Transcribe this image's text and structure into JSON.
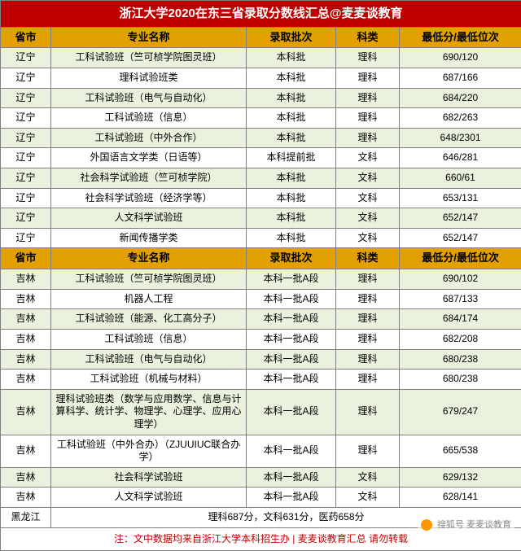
{
  "title": "浙江大学2020在东三省录取分数线汇总@麦麦谈教育",
  "columns": [
    "省市",
    "专业名称",
    "录取批次",
    "科类",
    "最低分/最低位次"
  ],
  "col_widths": [
    "62px",
    "240px",
    "110px",
    "78px",
    "150px"
  ],
  "header_bg": "#e2a100",
  "title_bg": "#c00000",
  "alt_bg_a": "#eaf1dd",
  "alt_bg_b": "#ffffff",
  "section1": [
    {
      "prov": "辽宁",
      "major": "工科试验班（竺可桢学院图灵班）",
      "batch": "本科批",
      "subj": "理科",
      "score": "690/120"
    },
    {
      "prov": "辽宁",
      "major": "理科试验班类",
      "batch": "本科批",
      "subj": "理科",
      "score": "687/166"
    },
    {
      "prov": "辽宁",
      "major": "工科试验班（电气与自动化）",
      "batch": "本科批",
      "subj": "理科",
      "score": "684/220"
    },
    {
      "prov": "辽宁",
      "major": "工科试验班（信息）",
      "batch": "本科批",
      "subj": "理科",
      "score": "682/263"
    },
    {
      "prov": "辽宁",
      "major": "工科试验班（中外合作）",
      "batch": "本科批",
      "subj": "理科",
      "score": "648/2301"
    },
    {
      "prov": "辽宁",
      "major": "外国语言文学类（日语等）",
      "batch": "本科提前批",
      "subj": "文科",
      "score": "646/281"
    },
    {
      "prov": "辽宁",
      "major": "社会科学试验班（竺可桢学院）",
      "batch": "本科批",
      "subj": "文科",
      "score": "660/61"
    },
    {
      "prov": "辽宁",
      "major": "社会科学试验班（经济学等）",
      "batch": "本科批",
      "subj": "文科",
      "score": "653/131"
    },
    {
      "prov": "辽宁",
      "major": "人文科学试验班",
      "batch": "本科批",
      "subj": "文科",
      "score": "652/147"
    },
    {
      "prov": "辽宁",
      "major": "新闻传播学类",
      "batch": "本科批",
      "subj": "文科",
      "score": "652/147"
    }
  ],
  "section2": [
    {
      "prov": "吉林",
      "major": "工科试验班（竺可桢学院图灵班）",
      "batch": "本科一批A段",
      "subj": "理科",
      "score": "690/102"
    },
    {
      "prov": "吉林",
      "major": "机器人工程",
      "batch": "本科一批A段",
      "subj": "理科",
      "score": "687/133"
    },
    {
      "prov": "吉林",
      "major": "工科试验班（能源、化工高分子）",
      "batch": "本科一批A段",
      "subj": "理科",
      "score": "684/174"
    },
    {
      "prov": "吉林",
      "major": "工科试验班（信息）",
      "batch": "本科一批A段",
      "subj": "理科",
      "score": "682/208"
    },
    {
      "prov": "吉林",
      "major": "工科试验班（电气与自动化）",
      "batch": "本科一批A段",
      "subj": "理科",
      "score": "680/238"
    },
    {
      "prov": "吉林",
      "major": "工科试验班（机械与材料）",
      "batch": "本科一批A段",
      "subj": "理科",
      "score": "680/238"
    },
    {
      "prov": "吉林",
      "major": "理科试验班类（数学与应用数学、信息与计算科学、统计学、物理学、心理学、应用心理学）",
      "batch": "本科一批A段",
      "subj": "理科",
      "score": "679/247"
    },
    {
      "prov": "吉林",
      "major": "工科试验班（中外合办）（ZJUUIUC联合办学）",
      "batch": "本科一批A段",
      "subj": "理科",
      "score": "665/538"
    },
    {
      "prov": "吉林",
      "major": "社会科学试验班",
      "batch": "本科一批A段",
      "subj": "文科",
      "score": "629/132"
    },
    {
      "prov": "吉林",
      "major": "人文科学试验班",
      "batch": "本科一批A段",
      "subj": "文科",
      "score": "628/141"
    }
  ],
  "heilongjiang": {
    "prov": "黑龙江",
    "summary": "理科687分，文科631分，医药658分"
  },
  "note": "注：文中数据均来自浙江大学本科招生办 | 麦麦谈教育汇总 请勿转载",
  "watermark": "搜狐号 麦麦谈教育"
}
